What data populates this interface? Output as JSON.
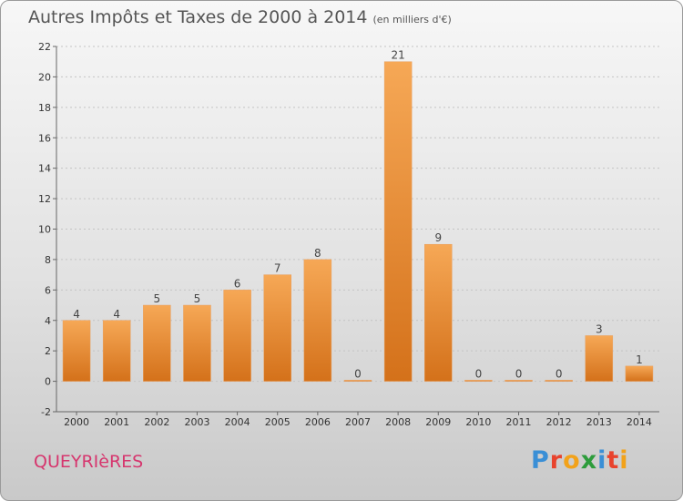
{
  "title": "Autres Impôts et Taxes de 2000 à 2014",
  "unit": "(en milliers d'€)",
  "commune": "QUEYRIèRES",
  "logo": {
    "letters": [
      "P",
      "r",
      "o",
      "x",
      "i",
      "t",
      "i"
    ],
    "colors": [
      "#3a8fd6",
      "#e8432d",
      "#f2a21a",
      "#2d9c3b",
      "#3a8fd6",
      "#e8432d",
      "#f2a21a"
    ]
  },
  "chart_data": {
    "type": "bar",
    "categories": [
      "2000",
      "2001",
      "2002",
      "2003",
      "2004",
      "2005",
      "2006",
      "2007",
      "2008",
      "2009",
      "2010",
      "2011",
      "2012",
      "2013",
      "2014"
    ],
    "values": [
      4,
      4,
      5,
      5,
      6,
      7,
      8,
      0,
      21,
      9,
      0,
      0,
      0,
      3,
      1
    ],
    "data_labels": [
      "4",
      "4",
      "5",
      "5",
      "6",
      "7",
      "8",
      "0",
      "21",
      "9",
      "0",
      "0",
      "0",
      "3",
      "1"
    ],
    "ylim": [
      -2,
      22
    ],
    "yticks": [
      -2,
      0,
      2,
      4,
      6,
      8,
      10,
      12,
      14,
      16,
      18,
      20,
      22
    ],
    "bar_color_top": "#f6a856",
    "bar_color_bottom": "#d4711a",
    "grid": true
  }
}
